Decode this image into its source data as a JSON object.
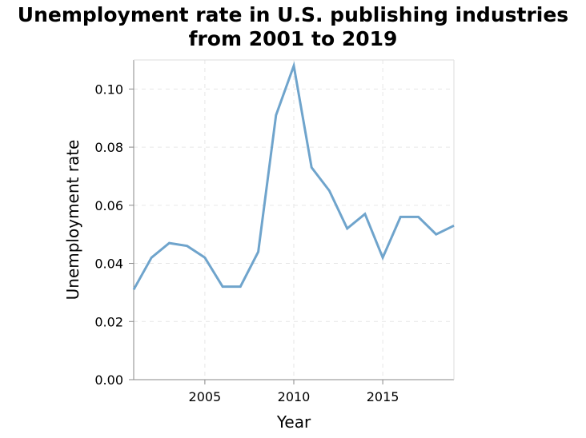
{
  "chart_data": {
    "type": "line",
    "title_lines": [
      "Unemployment rate in U.S. publishing industries",
      "from 2001 to 2019"
    ],
    "xlabel": "Year",
    "ylabel": "Unemployment rate",
    "xlim": [
      2001,
      2019
    ],
    "ylim": [
      0,
      0.11
    ],
    "x_ticks": [
      2005,
      2010,
      2015
    ],
    "y_ticks": [
      "0.00",
      "0.02",
      "0.04",
      "0.06",
      "0.08",
      "0.10"
    ],
    "grid": true,
    "legend": "none",
    "line_color": "#6fa4cc",
    "series": [
      {
        "x": [
          2001,
          2002,
          2003,
          2004,
          2005,
          2006,
          2007,
          2008,
          2009,
          2010,
          2011,
          2012,
          2013,
          2014,
          2015,
          2016,
          2017,
          2018,
          2019
        ],
        "values": [
          0.031,
          0.042,
          0.047,
          0.046,
          0.042,
          0.032,
          0.032,
          0.044,
          0.091,
          0.108,
          0.073,
          0.065,
          0.052,
          0.057,
          0.042,
          0.056,
          0.056,
          0.05,
          0.053
        ]
      }
    ]
  }
}
